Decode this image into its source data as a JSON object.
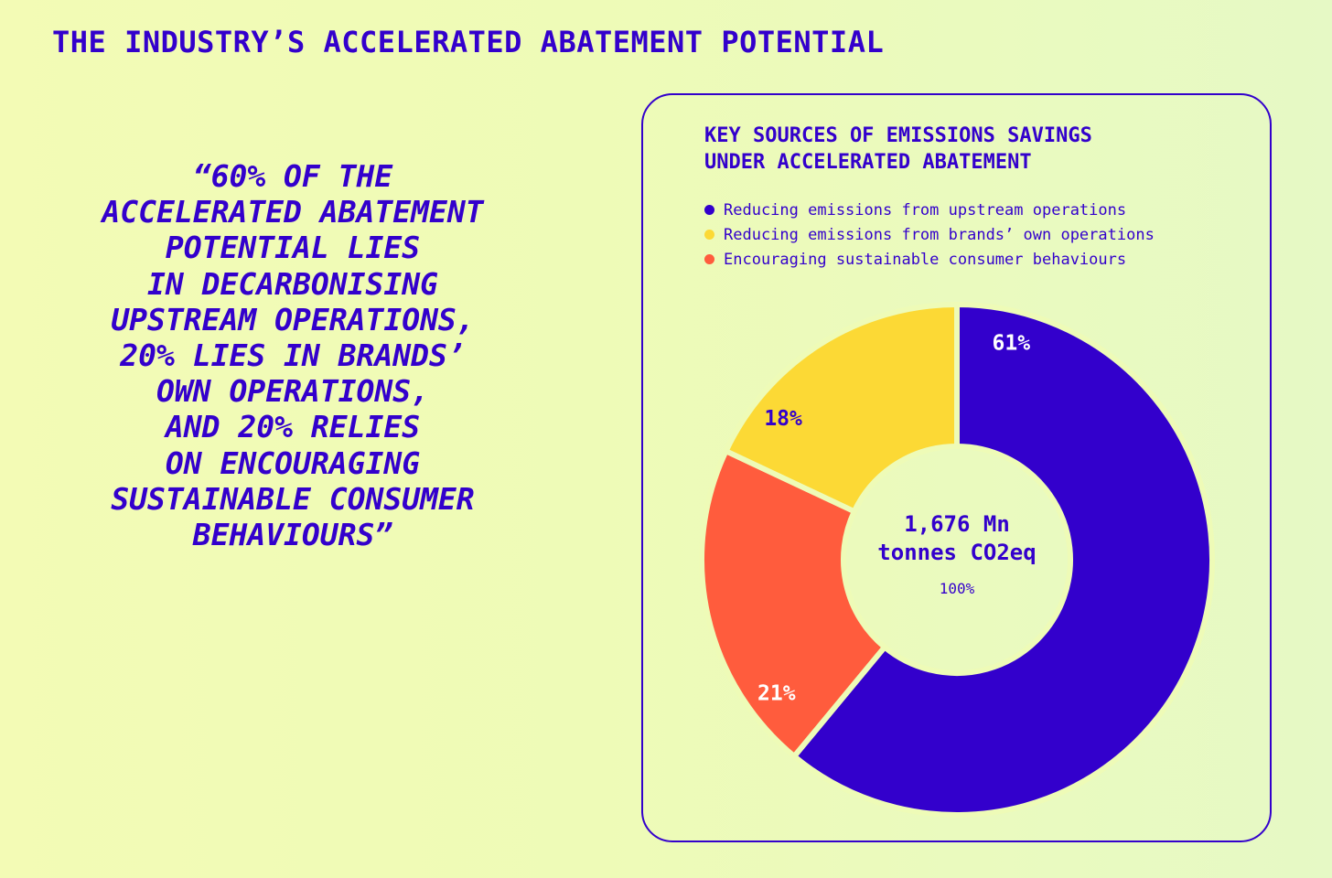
{
  "page": {
    "title": "THE INDUSTRY’S ACCELERATED ABATEMENT POTENTIAL",
    "quote": "“60% OF THE\nACCELERATED ABATEMENT\nPOTENTIAL LIES\nIN DECARBONISING\nUPSTREAM OPERATIONS,\n20% LIES IN BRANDS’\nOWN OPERATIONS,\nAND 20% RELIES\nON ENCOURAGING\nSUSTAINABLE CONSUMER\nBEHAVIOURS”"
  },
  "colors": {
    "text": "#3300cc",
    "background_start": "#f3fbb5",
    "background_end": "#e6f9c5",
    "donut_gap": "#eefbb7"
  },
  "chart_data": {
    "type": "pie",
    "subtype": "donut",
    "title": "KEY SOURCES OF EMISSIONS SAVINGS\nUNDER ACCELERATED ABATEMENT",
    "legend_position": "top-left",
    "categories": [
      "Reducing emissions from upstream operations",
      "Reducing emissions from brands’ own operations",
      "Encouraging sustainable consumer behaviours"
    ],
    "values": [
      61,
      18,
      21
    ],
    "value_labels": [
      "61%",
      "18%",
      "21%"
    ],
    "slice_order_clockwise_from_top": [
      0,
      2,
      1
    ],
    "colors": [
      "#3300cc",
      "#fcd935",
      "#ff5c3d"
    ],
    "label_colors": [
      "#ffffff",
      "#3300cc",
      "#ffffff"
    ],
    "center_label": {
      "line1": "1,676 Mn",
      "line2": "tonnes CO2eq",
      "percent": "100%"
    }
  }
}
